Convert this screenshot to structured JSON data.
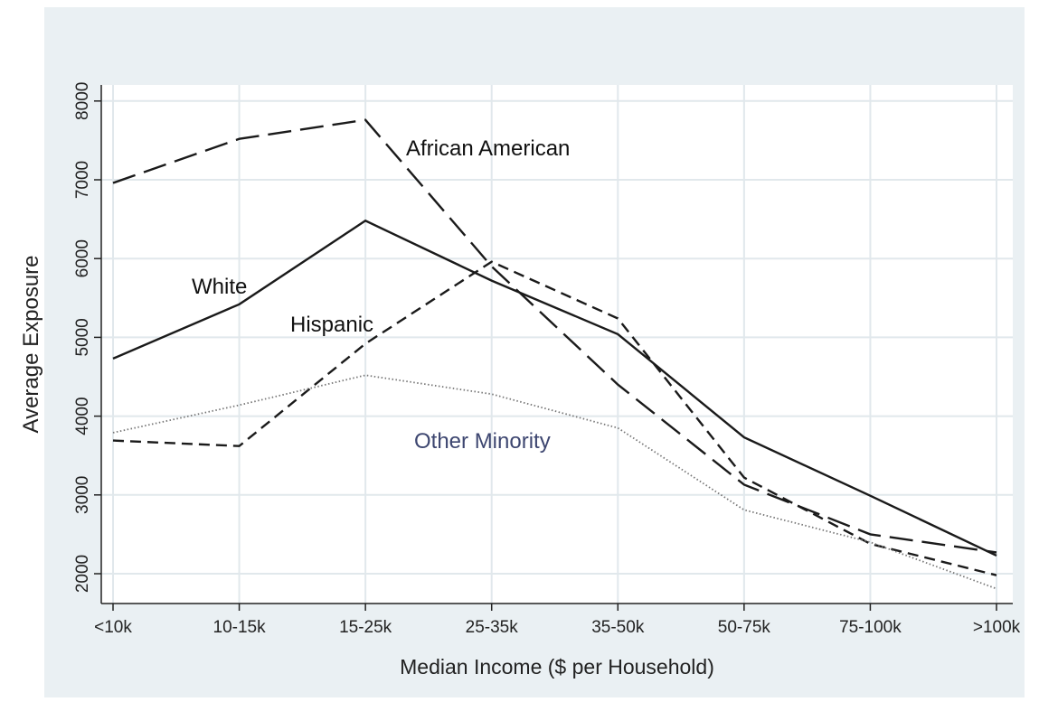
{
  "chart_data": {
    "type": "line",
    "title": "",
    "xlabel": "Median Income ($ per Household)",
    "ylabel": "Average Exposure",
    "ylim": [
      1600,
      8200
    ],
    "yticks": [
      2000,
      3000,
      4000,
      5000,
      6000,
      7000,
      8000
    ],
    "grid": true,
    "categories": [
      "<10k",
      "10-15k",
      "15-25k",
      "25-35k",
      "35-50k",
      "50-75k",
      "75-100k",
      ">100k"
    ],
    "series": [
      {
        "name": "African American",
        "style": "long-dash",
        "color": "#1a1a1a",
        "values": [
          6960,
          7520,
          7760,
          5900,
          4400,
          3130,
          2500,
          2270
        ]
      },
      {
        "name": "White",
        "style": "solid",
        "color": "#1a1a1a",
        "values": [
          4730,
          5420,
          6480,
          5720,
          5040,
          3730,
          2990,
          2230
        ]
      },
      {
        "name": "Hispanic",
        "style": "short-dash",
        "color": "#1a1a1a",
        "values": [
          3690,
          3620,
          4920,
          5960,
          5240,
          3220,
          2380,
          1980
        ]
      },
      {
        "name": "Other Minority",
        "style": "dotted",
        "color": "#777777",
        "values": [
          3790,
          4140,
          4520,
          4280,
          3850,
          2810,
          2400,
          1810
        ]
      }
    ],
    "annotation_color_other": "#3d4670",
    "colors": {
      "outer_bg": "#eaf0f3",
      "plot_bg": "#ffffff",
      "grid": "#e1e8ec"
    }
  }
}
